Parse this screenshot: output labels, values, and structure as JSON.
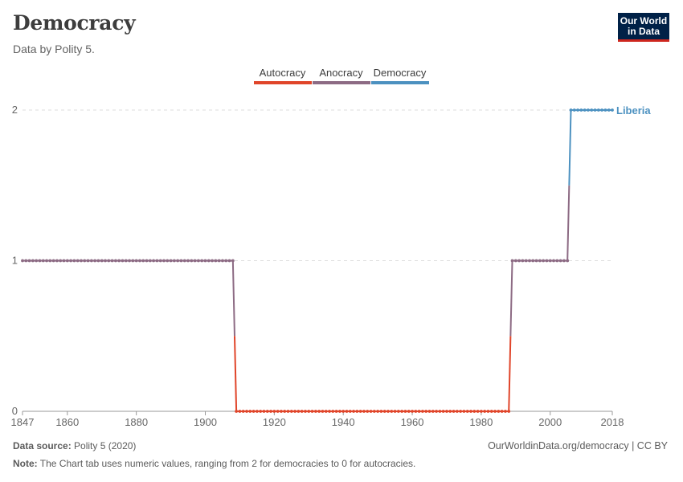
{
  "header": {
    "title": "Democracy",
    "subtitle": "Data by Polity 5.",
    "logo_line1": "Our World",
    "logo_line2": "in Data"
  },
  "legend": [
    {
      "label": "Autocracy",
      "color": "#e0452a"
    },
    {
      "label": "Anocracy",
      "color": "#8d6b84"
    },
    {
      "label": "Democracy",
      "color": "#4c91c0"
    }
  ],
  "footer": {
    "source_label": "Data source:",
    "source_value": "Polity 5 (2020)",
    "note_label": "Note:",
    "note_value": "The Chart tab uses numeric values, ranging from 2 for democracies to 0 for autocracies.",
    "link": "OurWorldinData.org/democracy | CC BY"
  },
  "chart_data": {
    "type": "line",
    "title": "Democracy",
    "subtitle": "Data by Polity 5.",
    "xlim": [
      1847,
      2018
    ],
    "ylim": [
      0,
      2
    ],
    "x_ticks": [
      1847,
      1860,
      1880,
      1900,
      1920,
      1940,
      1960,
      1980,
      2000,
      2018
    ],
    "y_ticks": [
      0,
      1,
      2
    ],
    "grid": "horizontal dashed",
    "series": [
      {
        "name": "Liberia",
        "color_scale": {
          "0": "#e0452a",
          "1": "#8d6b84",
          "2": "#4c91c0"
        },
        "segments": [
          {
            "from": 1847,
            "to": 1908,
            "value": 1
          },
          {
            "from": 1909,
            "to": 1988,
            "value": 0
          },
          {
            "from": 1989,
            "to": 2005,
            "value": 1
          },
          {
            "from": 2006,
            "to": 2018,
            "value": 2
          }
        ]
      }
    ]
  }
}
